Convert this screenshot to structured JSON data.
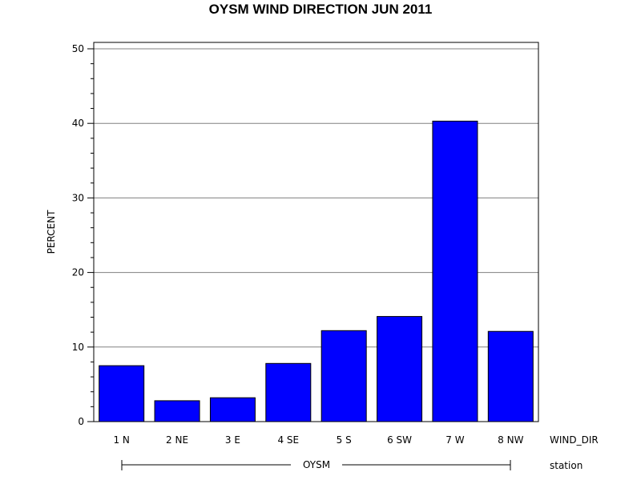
{
  "chart_data": {
    "type": "bar",
    "title": "OYSM WIND DIRECTION JUN 2011",
    "ylabel": "PERCENT",
    "xlabel": "WIND_DIR",
    "categories": [
      "1 N",
      "2 NE",
      "3 E",
      "4 SE",
      "5 S",
      "6 SW",
      "7 W",
      "8 NW"
    ],
    "values": [
      7.5,
      2.8,
      3.2,
      7.8,
      12.2,
      14.1,
      40.3,
      12.1
    ],
    "ylim": [
      0,
      50
    ],
    "yticks": [
      0,
      10,
      20,
      30,
      40,
      50
    ],
    "grid": true,
    "bar_color": "#0000ff",
    "group": {
      "label": "OYSM",
      "axis_label": "station"
    }
  }
}
